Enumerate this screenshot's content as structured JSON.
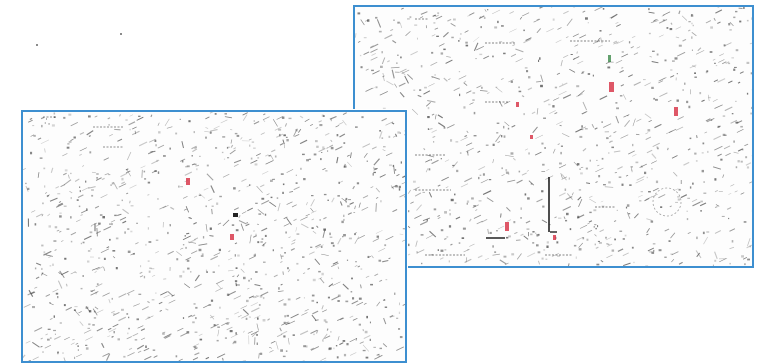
{
  "colors": {
    "frame_border": "#3d8fd0",
    "ink": "#444444",
    "highlight": "#d83a4c",
    "accent": "#3c8a4a"
  },
  "maps": [
    {
      "id": "map-right",
      "highlights": 6,
      "description_icon": "survey-map-icon"
    },
    {
      "id": "map-left",
      "highlights": 2,
      "description_icon": "survey-map-icon"
    }
  ]
}
